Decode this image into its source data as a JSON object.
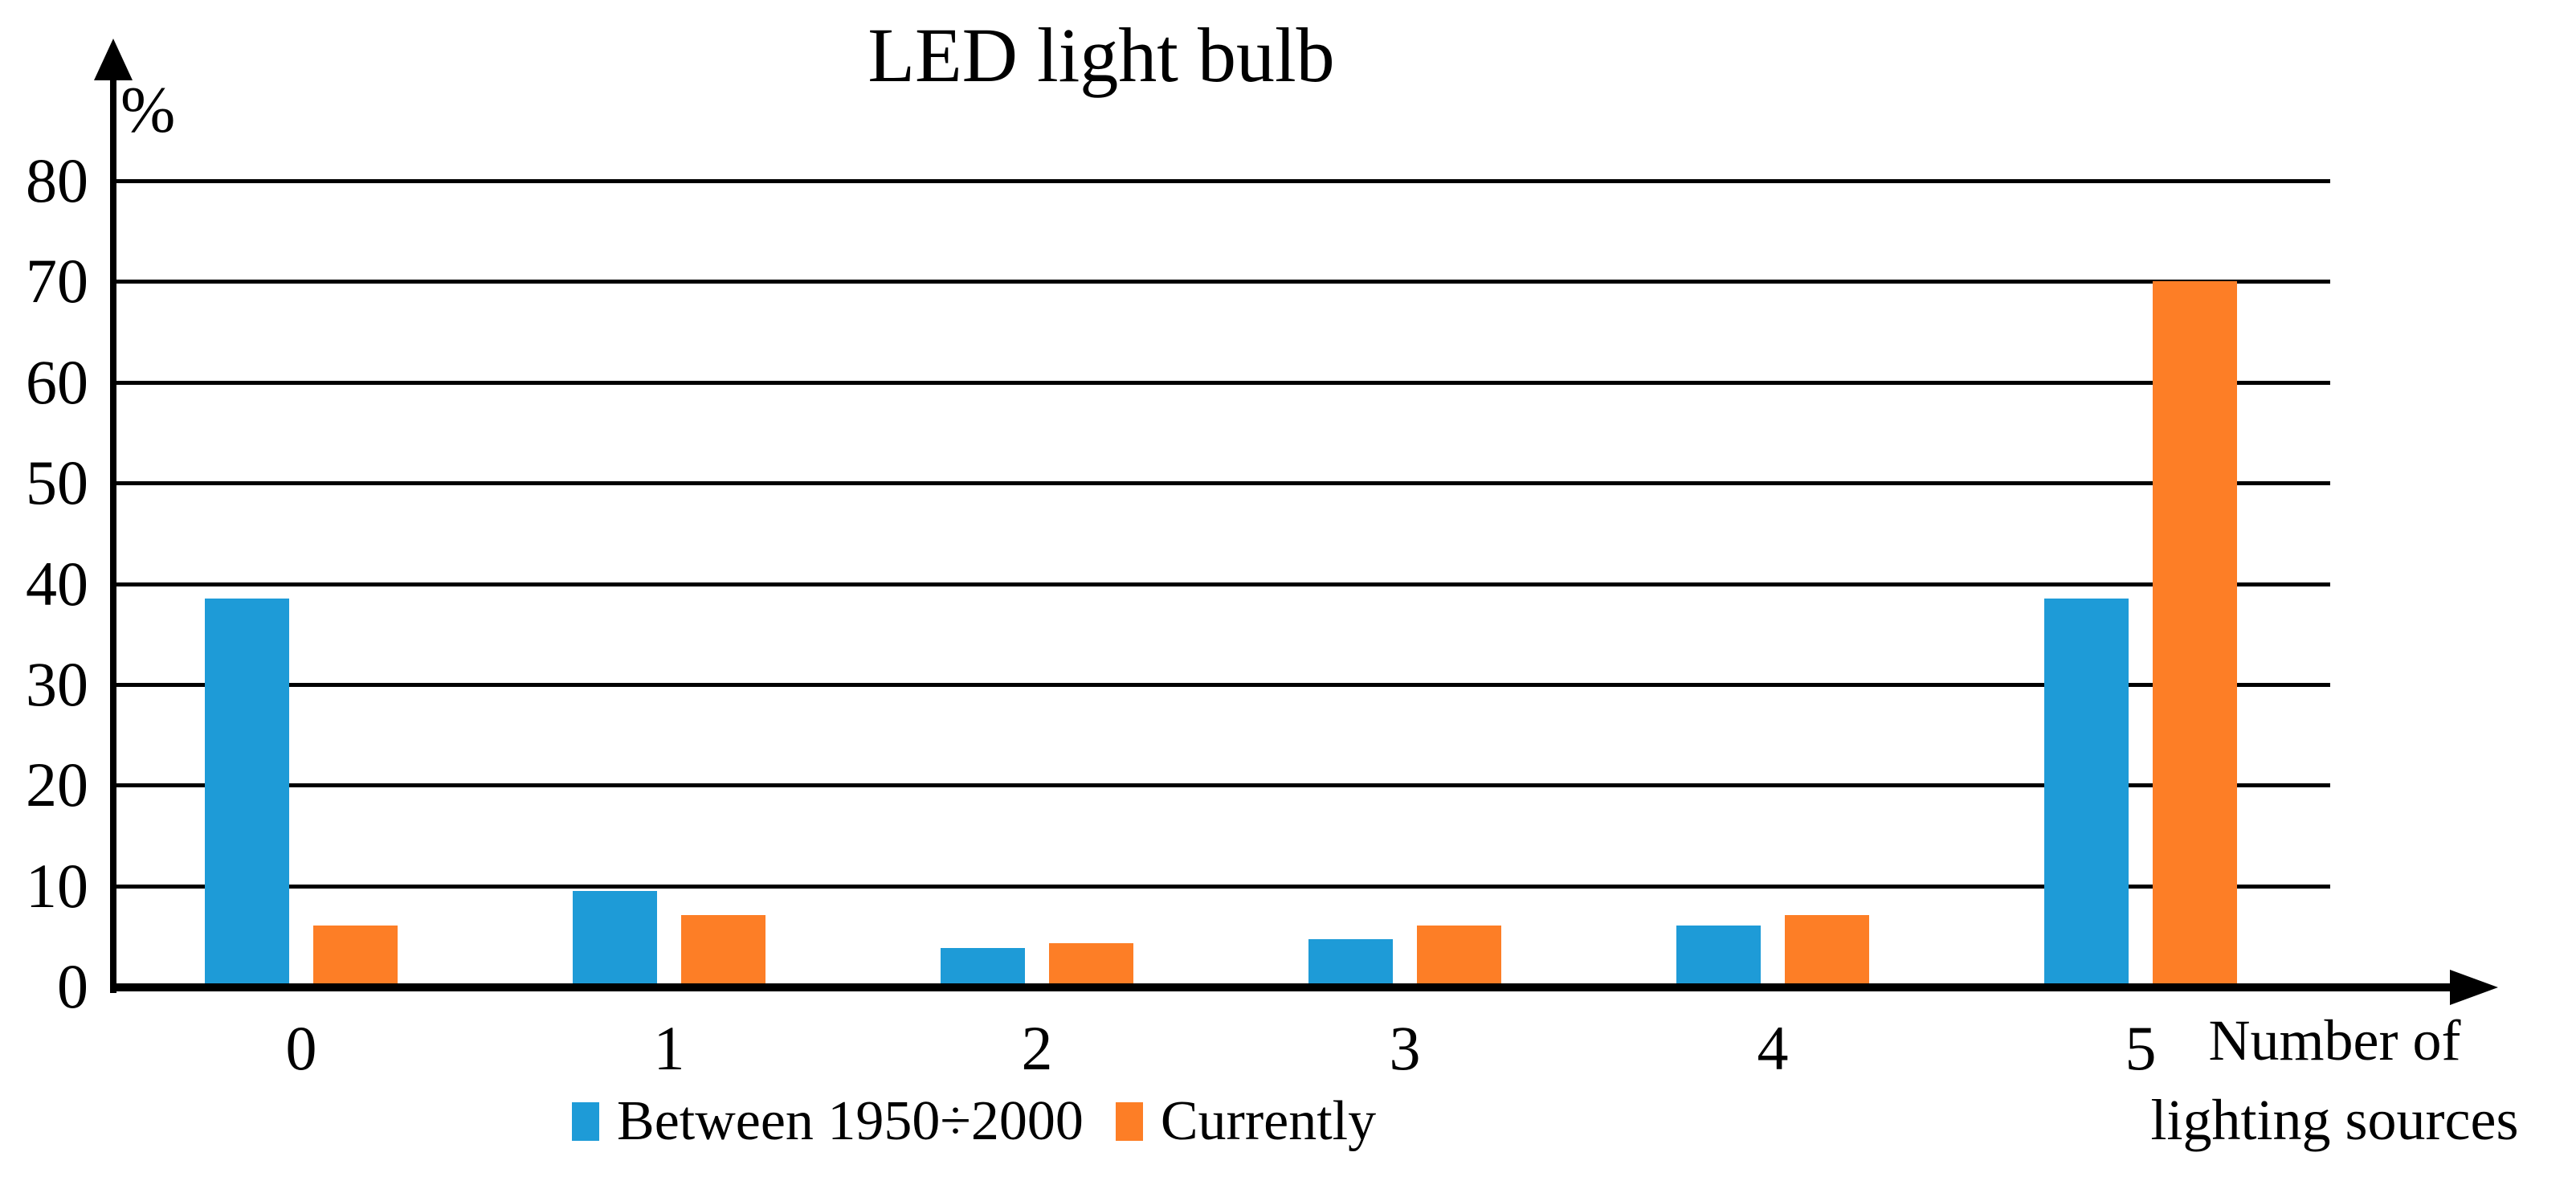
{
  "chart_data": {
    "type": "bar",
    "title": "LED light bulb",
    "ylabel": "%",
    "xlabel_lines": [
      "Number of",
      "lighting sources"
    ],
    "categories": [
      "0",
      "1",
      "2",
      "3",
      "4",
      "5"
    ],
    "series": [
      {
        "name": "Between 1950÷2000",
        "color": "#1E9BD7",
        "values": [
          38.5,
          9.5,
          3.8,
          4.7,
          6.1,
          38.5
        ]
      },
      {
        "name": "Currently",
        "color": "#FD7E26",
        "values": [
          6.1,
          7.1,
          4.3,
          6.1,
          7.1,
          70
        ]
      }
    ],
    "ylim": [
      0,
      80
    ],
    "ytick_step": 10,
    "yticks": [
      "0",
      "10",
      "20",
      "30",
      "40",
      "50",
      "60",
      "70",
      "80"
    ],
    "grid": "horizontal",
    "legend_position": "bottom",
    "axis_color": "#000000"
  }
}
